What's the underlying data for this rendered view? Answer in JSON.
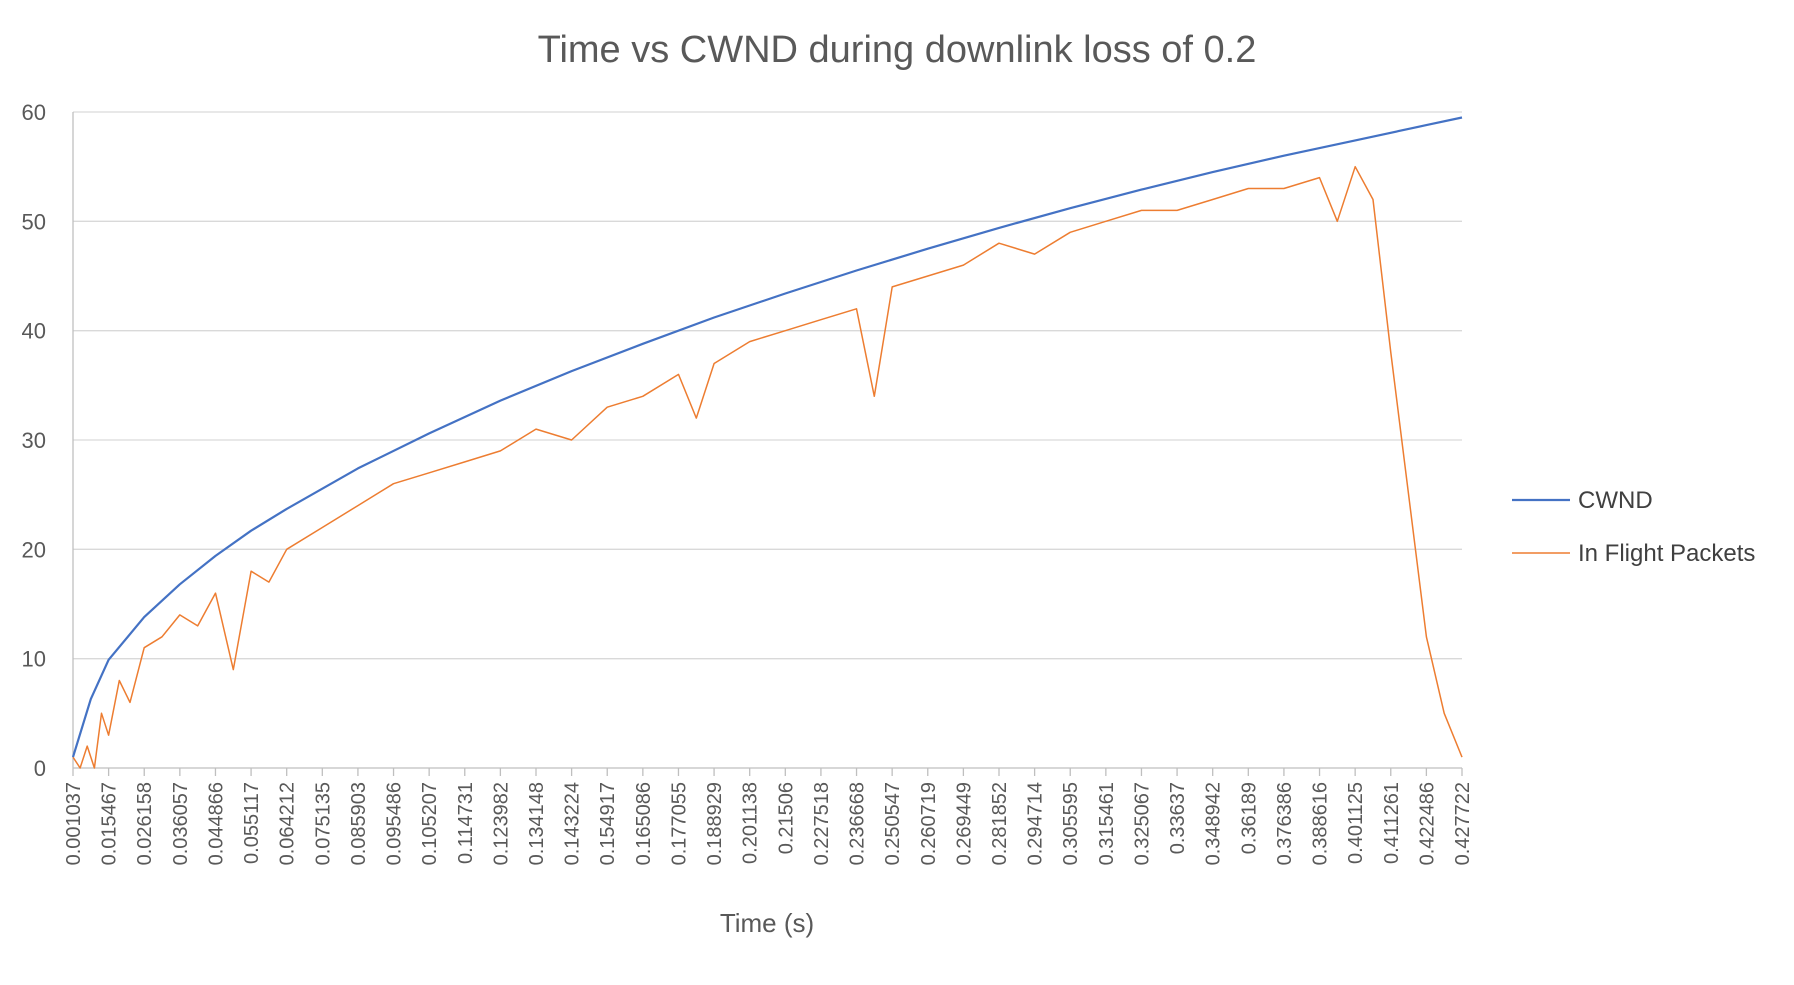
{
  "chart_data": {
    "type": "line",
    "title": "Time vs CWND during downlink loss of 0.2",
    "xlabel": "Time (s)",
    "ylabel": "",
    "ylim": [
      0,
      60
    ],
    "yticks": [
      0,
      10,
      20,
      30,
      40,
      50,
      60
    ],
    "grid": true,
    "legend_position": "right",
    "categories": [
      "0.001037",
      "0.015467",
      "0.026158",
      "0.036057",
      "0.044866",
      "0.055117",
      "0.064212",
      "0.075135",
      "0.085903",
      "0.095486",
      "0.105207",
      "0.114731",
      "0.123982",
      "0.134148",
      "0.143224",
      "0.154917",
      "0.165086",
      "0.177055",
      "0.188929",
      "0.201138",
      "0.21506",
      "0.227518",
      "0.236668",
      "0.250547",
      "0.260719",
      "0.269449",
      "0.281852",
      "0.294714",
      "0.305595",
      "0.315461",
      "0.325067",
      "0.33637",
      "0.348942",
      "0.36189",
      "0.376386",
      "0.388616",
      "0.401125",
      "0.411261",
      "0.422486",
      "0.427722"
    ],
    "series": [
      {
        "name": "CWND",
        "color": "#4472c4",
        "x": [
          0,
          0.5,
          1,
          2,
          3,
          4,
          5,
          6,
          8,
          10,
          12,
          14,
          16,
          18,
          20,
          22,
          24,
          26,
          28,
          30,
          32,
          34,
          36,
          38,
          39
        ],
        "values": [
          1,
          6.3,
          9.9,
          13.8,
          16.8,
          19.4,
          21.7,
          23.7,
          27.4,
          30.6,
          33.6,
          36.3,
          38.8,
          41.2,
          43.4,
          45.5,
          47.5,
          49.4,
          51.2,
          52.9,
          54.5,
          56.0,
          57.4,
          58.8,
          59.5
        ]
      },
      {
        "name": "In Flight Packets",
        "color": "#ed7d31",
        "x": [
          0,
          0.2,
          0.4,
          0.6,
          0.8,
          1,
          1.3,
          1.6,
          2,
          2.5,
          3,
          3.5,
          4,
          4.5,
          5,
          5.5,
          6,
          7,
          8,
          9,
          10,
          11,
          12,
          13,
          14,
          15,
          16,
          17,
          17.5,
          18,
          19,
          20,
          21,
          22,
          22.5,
          23,
          24,
          25,
          26,
          27,
          28,
          29,
          30,
          31,
          32,
          33,
          34,
          35,
          35.5,
          36,
          36.5,
          37,
          37.5,
          38,
          38.5,
          39
        ],
        "values": [
          1,
          0,
          2,
          0,
          5,
          3,
          8,
          6,
          11,
          12,
          14,
          13,
          16,
          9,
          18,
          17,
          20,
          22,
          24,
          26,
          27,
          28,
          29,
          31,
          30,
          33,
          34,
          36,
          32,
          37,
          39,
          40,
          41,
          42,
          34,
          44,
          45,
          46,
          48,
          47,
          49,
          50,
          51,
          51,
          52,
          53,
          53,
          54,
          50,
          55,
          52,
          38,
          25,
          12,
          5,
          1
        ]
      }
    ]
  }
}
